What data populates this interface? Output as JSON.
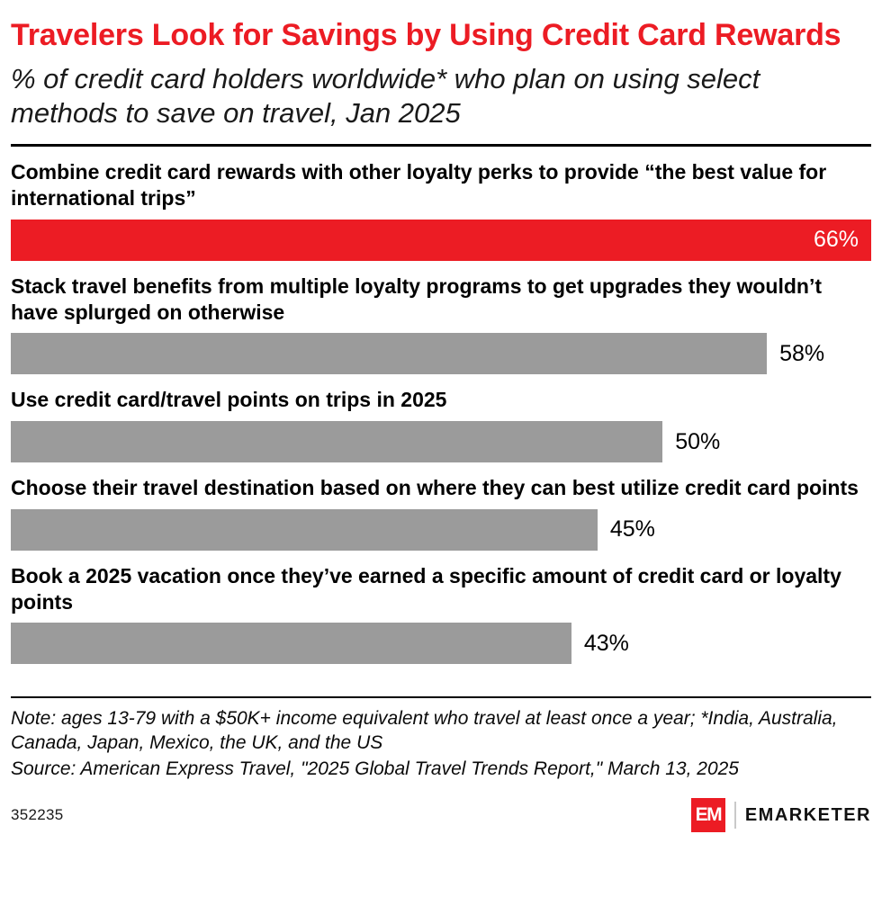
{
  "title": "Travelers Look for Savings by Using Credit Card Rewards",
  "subtitle": "% of credit card holders worldwide* who plan on using select methods to save on travel, Jan 2025",
  "chart_data": {
    "type": "bar",
    "orientation": "horizontal",
    "title": "Travelers Look for Savings by Using Credit Card Rewards",
    "subtitle": "% of credit card holders worldwide* who plan on using select methods to save on travel, Jan 2025",
    "categories": [
      "Combine credit card rewards with other loyalty perks to provide “the best value for international trips”",
      "Stack travel benefits from multiple loyalty programs to get upgrades they wouldn’t have splurged on otherwise",
      "Use credit card/travel points on trips in 2025",
      "Choose their travel destination based on where they can best utilize credit card points",
      "Book a 2025 vacation once they’ve earned a specific amount of credit card or loyalty points"
    ],
    "values": [
      66,
      58,
      50,
      45,
      43
    ],
    "value_suffix": "%",
    "xlim": [
      0,
      66
    ],
    "highlight_index": 0,
    "highlight_color": "#EC1C24",
    "bar_color": "#9B9B9B",
    "grid": false,
    "legend": false
  },
  "note": "Note: ages 13-79 with a $50K+ income equivalent who travel at least once a year; *India, Australia, Canada, Japan, Mexico, the UK, and the US",
  "source": "Source: American Express Travel, \"2025 Global Travel Trends Report,\" March 13, 2025",
  "footer": {
    "chart_id": "352235",
    "logo_text": "EM",
    "brand_name": "EMARKETER"
  }
}
